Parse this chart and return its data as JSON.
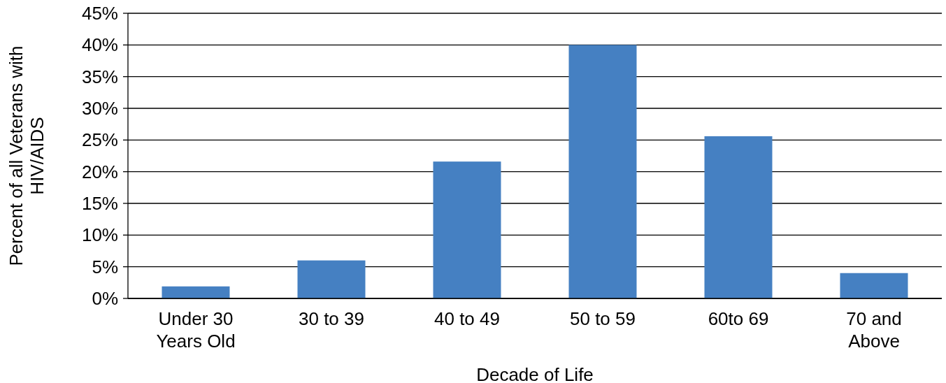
{
  "chart_data": {
    "type": "bar",
    "xlabel": "Decade of Life",
    "ylabel": "Percent of all Veterans with\nHIV/AIDS",
    "categories": [
      "Under 30\nYears Old",
      "30 to 39",
      "40 to 49",
      "50 to 59",
      "60to 69",
      "70 and\nAbove"
    ],
    "values": [
      1.9,
      6.0,
      21.6,
      40.0,
      25.6,
      4.0
    ],
    "color": "#4580c2",
    "ylim": [
      0,
      45
    ],
    "yticks": [
      {
        "value": 0,
        "label": "0%"
      },
      {
        "value": 5,
        "label": "5%"
      },
      {
        "value": 10,
        "label": "10%"
      },
      {
        "value": 15,
        "label": "15%"
      },
      {
        "value": 20,
        "label": "20%"
      },
      {
        "value": 25,
        "label": "25%"
      },
      {
        "value": 30,
        "label": "30%"
      },
      {
        "value": 35,
        "label": "35%"
      },
      {
        "value": 40,
        "label": "40%"
      },
      {
        "value": 45,
        "label": "45%"
      }
    ],
    "grid": "y"
  }
}
